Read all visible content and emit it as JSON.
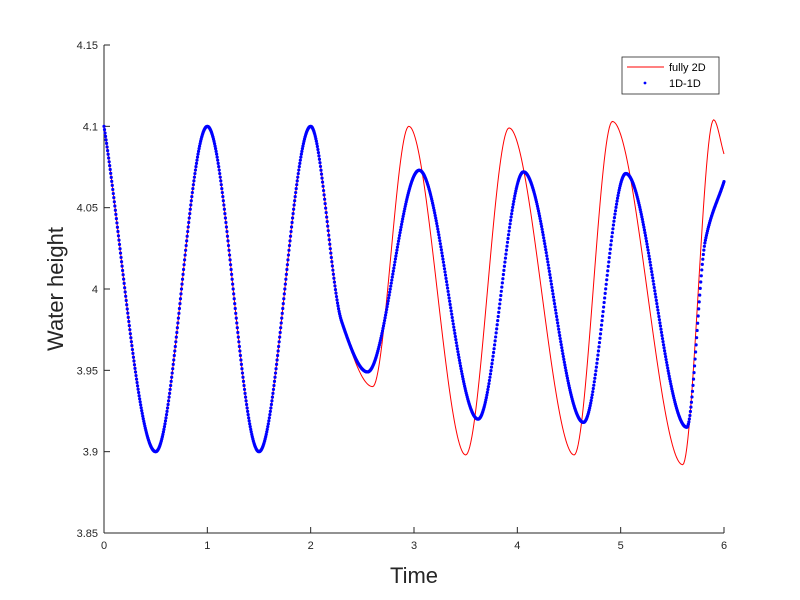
{
  "chart_data": {
    "type": "line",
    "title": "",
    "xlabel": "Time",
    "ylabel": "Water height",
    "xlim": [
      0,
      6
    ],
    "ylim": [
      3.85,
      4.15
    ],
    "xticks": [
      "0",
      "1",
      "2",
      "3",
      "4",
      "5",
      "6"
    ],
    "yticks": [
      "3.85",
      "3.9",
      "3.95",
      "4",
      "4.05",
      "4.1",
      "4.15"
    ],
    "grid": false,
    "legend_position": "top-right",
    "series": [
      {
        "name": "fully 2D",
        "color": "#ff0000",
        "style": "thin-line",
        "points": [
          [
            0.0,
            4.1
          ],
          [
            0.5,
            3.9
          ],
          [
            1.0,
            4.1
          ],
          [
            1.5,
            3.9
          ],
          [
            2.0,
            4.1
          ],
          [
            2.3,
            3.98
          ],
          [
            2.6,
            3.94
          ],
          [
            2.95,
            4.1
          ],
          [
            3.5,
            3.898
          ],
          [
            3.92,
            4.099
          ],
          [
            4.55,
            3.898
          ],
          [
            4.92,
            4.103
          ],
          [
            5.6,
            3.892
          ],
          [
            5.9,
            4.104
          ],
          [
            6.0,
            4.083
          ]
        ]
      },
      {
        "name": "1D-1D",
        "color": "#0000ff",
        "style": "thick-dotted",
        "points": [
          [
            0.0,
            4.1
          ],
          [
            0.5,
            3.9
          ],
          [
            1.0,
            4.1
          ],
          [
            1.5,
            3.9
          ],
          [
            2.0,
            4.1
          ],
          [
            2.3,
            3.98
          ],
          [
            2.55,
            3.949
          ],
          [
            3.05,
            4.073
          ],
          [
            3.62,
            3.92
          ],
          [
            4.06,
            4.072
          ],
          [
            4.64,
            3.918
          ],
          [
            5.05,
            4.071
          ],
          [
            5.64,
            3.915
          ],
          [
            5.82,
            4.03
          ],
          [
            6.0,
            4.066
          ]
        ]
      }
    ]
  }
}
